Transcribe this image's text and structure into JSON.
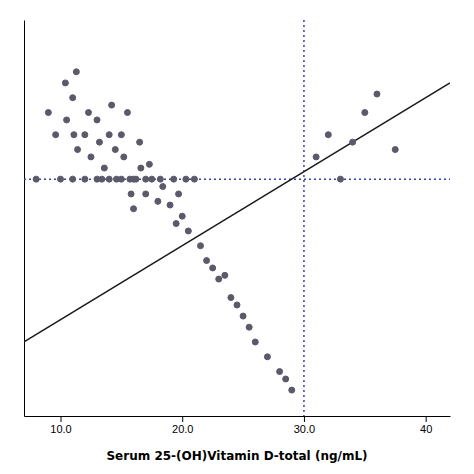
{
  "chart_data": {
    "type": "scatter",
    "xlabel": "Serum 25-(OH)Vitamin D-total (ng/mL)",
    "xlim": [
      7,
      42
    ],
    "ylim": [
      -0.02,
      1.05
    ],
    "xticks": [
      {
        "value": 10.0,
        "label": "10.0"
      },
      {
        "value": 20.0,
        "label": "20.0"
      },
      {
        "value": 30.0,
        "label": "30.0"
      },
      40
    ],
    "tick_labels": "x",
    "series": [
      {
        "type": "scatter",
        "color": "#5a5a6a",
        "x": [
          8.0,
          9.0,
          9.6,
          10.0,
          10.4,
          10.5,
          11.0,
          11.0,
          11.1,
          11.3,
          11.4,
          12.0,
          12.0,
          12.3,
          12.5,
          13.0,
          13.0,
          13.2,
          13.4,
          13.6,
          14.0,
          14.0,
          14.2,
          14.5,
          14.6,
          15.0,
          15.0,
          15.2,
          15.5,
          15.7,
          15.8,
          16.0,
          16.0,
          16.2,
          16.5,
          16.6,
          17.0,
          17.0,
          17.3,
          17.5,
          18.0,
          18.2,
          18.4,
          19.0,
          19.3,
          19.5,
          19.7,
          20.0,
          20.3,
          20.5,
          21.0,
          21.5,
          22.0,
          22.5,
          23.0,
          23.5,
          24.0,
          24.5,
          25.0,
          25.5,
          26.0,
          27.0,
          28.0,
          28.5,
          29.0,
          31.0,
          32.0,
          33.0,
          34.0,
          35.0,
          36.0,
          37.5
        ],
        "values": [
          0.62,
          0.8,
          0.74,
          0.62,
          0.88,
          0.78,
          0.62,
          0.84,
          0.74,
          0.91,
          0.7,
          0.74,
          0.62,
          0.8,
          0.68,
          0.78,
          0.62,
          0.72,
          0.62,
          0.65,
          0.62,
          0.74,
          0.82,
          0.7,
          0.62,
          0.62,
          0.74,
          0.68,
          0.8,
          0.62,
          0.58,
          0.62,
          0.54,
          0.62,
          0.72,
          0.65,
          0.62,
          0.58,
          0.66,
          0.62,
          0.56,
          0.62,
          0.6,
          0.55,
          0.62,
          0.5,
          0.58,
          0.52,
          0.62,
          0.48,
          0.62,
          0.44,
          0.4,
          0.38,
          0.35,
          0.36,
          0.3,
          0.28,
          0.25,
          0.22,
          0.18,
          0.14,
          0.1,
          0.08,
          0.05,
          0.68,
          0.74,
          0.62,
          0.72,
          0.8,
          0.85,
          0.7
        ]
      },
      {
        "type": "line",
        "color": "#1a1a1a",
        "x": [
          7.0,
          42.0
        ],
        "values": [
          0.18,
          0.88
        ]
      }
    ],
    "vlines": [
      {
        "value": 30.0,
        "color": "#3344aa",
        "line_style": "dotted"
      }
    ],
    "hlines": [
      {
        "value": 0.62,
        "color": "#3344aa",
        "line_style": "dotted"
      }
    ]
  }
}
